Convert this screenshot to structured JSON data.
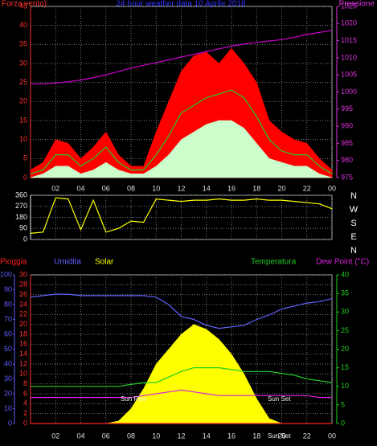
{
  "chart_data": [
    {
      "type": "line",
      "title": "24 hour weather data 10 Aprile 2018",
      "y_label": "Forza vento)",
      "y2_label": "Pressione",
      "x": [
        0,
        1,
        2,
        3,
        4,
        5,
        6,
        7,
        8,
        9,
        10,
        11,
        12,
        13,
        14,
        15,
        16,
        17,
        18,
        19,
        20,
        21,
        22,
        23,
        24
      ],
      "xlim": [
        0,
        24
      ],
      "xticks": [
        {
          "value": 2,
          "label": "02"
        },
        {
          "value": 4,
          "label": "04"
        },
        {
          "value": 6,
          "label": "06"
        },
        {
          "value": 8,
          "label": "08"
        },
        10,
        12,
        14,
        16,
        18,
        20,
        22,
        {
          "value": 24,
          "label": "00"
        }
      ],
      "ylim": [
        0,
        45
      ],
      "yticks": [
        0,
        5,
        10,
        15,
        20,
        25,
        30,
        35,
        40,
        45
      ],
      "y2lim": [
        975,
        1025
      ],
      "y2ticks": [
        975,
        980,
        985,
        990,
        995,
        1000,
        1005,
        1010,
        1015,
        1020,
        1025
      ],
      "grid": true,
      "series": [
        {
          "color": "#ff0000",
          "area": true,
          "values": [
            2,
            4,
            10,
            9,
            5,
            8,
            12,
            6,
            3,
            3,
            12,
            20,
            28,
            32,
            33,
            30,
            34,
            30,
            25,
            15,
            12,
            10,
            9,
            5,
            2
          ]
        },
        {
          "color": "#22cc22",
          "values": [
            1,
            2,
            6,
            6,
            3,
            5,
            8,
            4,
            2,
            2,
            6,
            11,
            17,
            19,
            21,
            22,
            23,
            21,
            16,
            10,
            7,
            6,
            6,
            3,
            1
          ]
        },
        {
          "color": "#ccffcc",
          "area": true,
          "values": [
            0,
            1,
            3,
            3,
            1,
            2,
            4,
            2,
            1,
            1,
            3,
            6,
            10,
            12,
            14,
            15,
            15,
            13,
            9,
            5,
            4,
            3,
            3,
            1,
            0
          ]
        },
        {
          "color": "#cc00cc",
          "axis": "y2",
          "values": [
            1002.3,
            1002.4,
            1002.6,
            1003,
            1003.5,
            1004.2,
            1005,
            1006,
            1007,
            1007.8,
            1008.6,
            1009.4,
            1010.2,
            1011,
            1011.8,
            1012.6,
            1013.4,
            1014,
            1014.5,
            1014.9,
            1015.3,
            1016,
            1016.8,
            1017.4,
            1018
          ]
        }
      ]
    },
    {
      "type": "line",
      "x": [
        0,
        1,
        2,
        3,
        4,
        5,
        6,
        7,
        8,
        9,
        10,
        11,
        12,
        13,
        14,
        15,
        16,
        17,
        18,
        19,
        20,
        21,
        22,
        23,
        24
      ],
      "xlim": [
        0,
        24
      ],
      "ylim": [
        0,
        360
      ],
      "yticks": [
        0,
        90,
        180,
        270,
        360
      ],
      "direction_labels": [
        "N",
        "W",
        "S",
        "E",
        "N"
      ],
      "grid": true,
      "series": [
        {
          "color": "#ffff00",
          "values": [
            50,
            60,
            340,
            330,
            80,
            320,
            60,
            90,
            150,
            140,
            330,
            320,
            310,
            320,
            320,
            330,
            320,
            320,
            330,
            320,
            320,
            310,
            300,
            290,
            250
          ]
        }
      ]
    },
    {
      "type": "line",
      "x": [
        0,
        1,
        2,
        3,
        4,
        5,
        6,
        7,
        8,
        9,
        10,
        11,
        12,
        13,
        14,
        15,
        16,
        17,
        18,
        19,
        20,
        21,
        22,
        23,
        24
      ],
      "xlim": [
        0,
        24
      ],
      "xticks": [
        {
          "value": 2,
          "label": "02"
        },
        {
          "value": 4,
          "label": "04"
        },
        {
          "value": 6,
          "label": "06"
        },
        {
          "value": 8,
          "label": "08"
        },
        10,
        12,
        14,
        16,
        18,
        20,
        22,
        {
          "value": 24,
          "label": "00"
        }
      ],
      "ylim": [
        0,
        30
      ],
      "yticks": [
        0,
        2,
        4,
        6,
        8,
        10,
        12,
        14,
        16,
        18,
        20,
        22,
        24,
        26,
        28,
        30
      ],
      "y3lim": [
        0,
        100
      ],
      "y3ticks": [
        0,
        10,
        20,
        30,
        40,
        50,
        60,
        70,
        80,
        90,
        100
      ],
      "y2lim": [
        0,
        40
      ],
      "y2ticks": [
        0,
        5,
        10,
        15,
        20,
        25,
        30,
        35,
        40
      ],
      "grid": true,
      "annotations": [
        "Sun Rise",
        "Sun Set",
        "Sun Set"
      ],
      "series": [
        {
          "name": "Pioggia",
          "color": "#ff2020",
          "values": [
            0,
            0,
            0,
            0,
            0,
            0,
            0,
            0,
            0,
            0,
            0,
            0,
            0,
            0,
            0,
            0,
            0,
            0,
            0,
            0,
            0,
            0,
            0,
            0,
            0
          ]
        },
        {
          "name": "Umidita",
          "color": "#6060ff",
          "axis": "y3",
          "values": [
            85,
            86,
            87,
            87,
            86,
            86,
            86,
            86,
            86,
            86,
            85,
            80,
            72,
            70,
            66,
            64,
            65,
            66,
            70,
            73,
            77,
            79,
            81,
            82,
            84
          ]
        },
        {
          "name": "Solar",
          "color": "#ffff00",
          "area": true,
          "values": [
            0,
            0,
            0,
            0,
            0,
            0,
            0,
            0.5,
            3,
            7,
            12,
            15,
            18,
            20,
            19,
            17,
            14,
            10,
            5,
            1,
            0,
            0,
            0,
            0,
            0
          ]
        },
        {
          "name": "Temperatura",
          "color": "#22cc22",
          "axis": "y2",
          "values": [
            10,
            10,
            10,
            10,
            10,
            10,
            10,
            10,
            10.5,
            11,
            11,
            12.5,
            14,
            15,
            15,
            15,
            14.5,
            14,
            14,
            14,
            13.5,
            13,
            12,
            11.5,
            11
          ]
        },
        {
          "name": "Dew Point (°C)",
          "color": "#dd22dd",
          "axis": "y2",
          "values": [
            7,
            7,
            7,
            7,
            7,
            7,
            7,
            7,
            7,
            7.5,
            8,
            8.5,
            9,
            8.5,
            8,
            7.5,
            7.5,
            7.5,
            7.5,
            7.5,
            7.5,
            7.5,
            7.5,
            7,
            7
          ]
        }
      ]
    }
  ]
}
